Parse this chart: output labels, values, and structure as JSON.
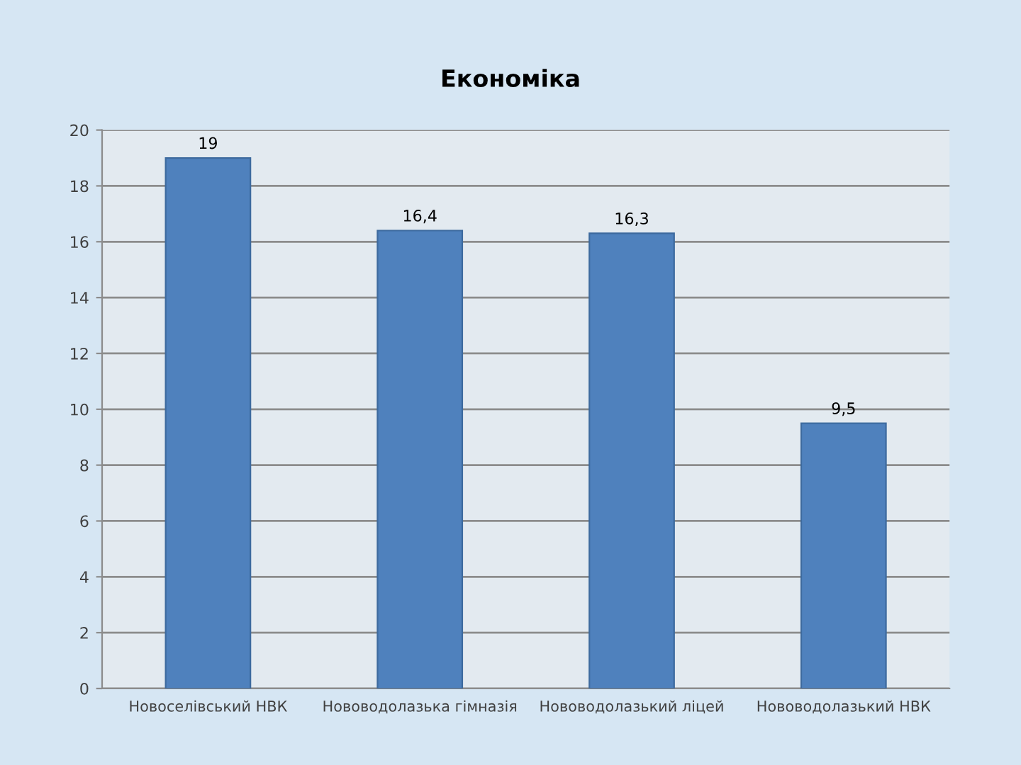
{
  "chart_data": {
    "type": "bar",
    "title": "Економіка",
    "categories": [
      "Новоселівський НВК",
      "Нововодолазька гімназія",
      "Нововодолазький ліцей",
      "Нововодолазький НВК"
    ],
    "values": [
      19,
      16.4,
      16.3,
      9.5
    ],
    "value_labels": [
      "19",
      "16,4",
      "16,3",
      "9,5"
    ],
    "color": "#4f81bd",
    "ylim": [
      0,
      20
    ],
    "yticks": [
      0,
      2,
      4,
      6,
      8,
      10,
      12,
      14,
      16,
      18,
      20
    ],
    "grid": "y",
    "legend": false
  }
}
